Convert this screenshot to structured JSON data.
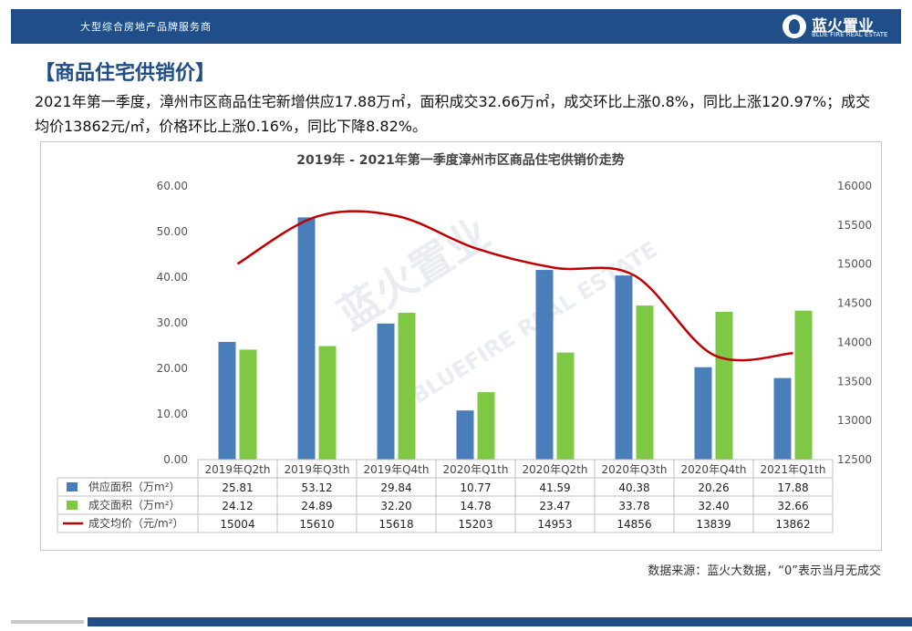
{
  "header": {
    "tagline": "大型综合房地产品牌服务商",
    "logo_name": "蓝火置业",
    "logo_sub": "BLUE FIRE REAL ESTATE"
  },
  "section_title": "【商品住宅供销价】",
  "summary": "2021年第一季度，漳州市区商品住宅新增供应17.88万㎡，面积成交32.66万㎡，成交环比上涨0.8%，同比上涨120.97%；成交均价13862元/㎡，价格环比上涨0.16%，同比下降8.82%。",
  "watermark": "蓝火置业",
  "watermark_sub": "BLUEFIRE REAL ESTATE",
  "source": "数据来源：蓝火大数据，“0”表示当月无成交",
  "colors": {
    "supply": "#4a7ebb",
    "deal": "#7ec843",
    "price": "#c00000",
    "brand": "#1f4e89"
  },
  "chart_data": {
    "type": "bar",
    "title": "2019年 - 2021年第一季度漳州市区商品住宅供销价走势",
    "categories": [
      "2019年Q2th",
      "2019年Q3th",
      "2019年Q4th",
      "2020年Q1th",
      "2020年Q2th",
      "2020年Q3th",
      "2020年Q4th",
      "2021年Q1th"
    ],
    "series": [
      {
        "name": "供应面积（万m²）",
        "type": "bar",
        "axis": "left",
        "values": [
          25.81,
          53.12,
          29.84,
          10.77,
          41.59,
          40.38,
          20.26,
          17.88
        ],
        "labels": [
          "25.81",
          "53.12",
          "29.84",
          "10.77",
          "41.59",
          "40.38",
          "20.26",
          "17.88"
        ]
      },
      {
        "name": "成交面积（万m²）",
        "type": "bar",
        "axis": "left",
        "values": [
          24.12,
          24.89,
          32.2,
          14.78,
          23.47,
          33.78,
          32.4,
          32.66
        ],
        "labels": [
          "24.12",
          "24.89",
          "32.20",
          "14.78",
          "23.47",
          "33.78",
          "32.40",
          "32.66"
        ]
      },
      {
        "name": "成交均价（元/m²）",
        "type": "line",
        "axis": "right",
        "values": [
          15004,
          15610,
          15618,
          15203,
          14953,
          14856,
          13839,
          13862
        ],
        "labels": [
          "15004",
          "15610",
          "15618",
          "15203",
          "14953",
          "14856",
          "13839",
          "13862"
        ]
      }
    ],
    "ylim_left": [
      0,
      60
    ],
    "yticks_left": [
      "0.00",
      "10.00",
      "20.00",
      "30.00",
      "40.00",
      "50.00",
      "60.00"
    ],
    "ylim_right": [
      12500,
      16000
    ],
    "yticks_right": [
      "12500",
      "13000",
      "13500",
      "14000",
      "14500",
      "15000",
      "15500",
      "16000"
    ],
    "legend": "bottom-table",
    "grid": false
  }
}
